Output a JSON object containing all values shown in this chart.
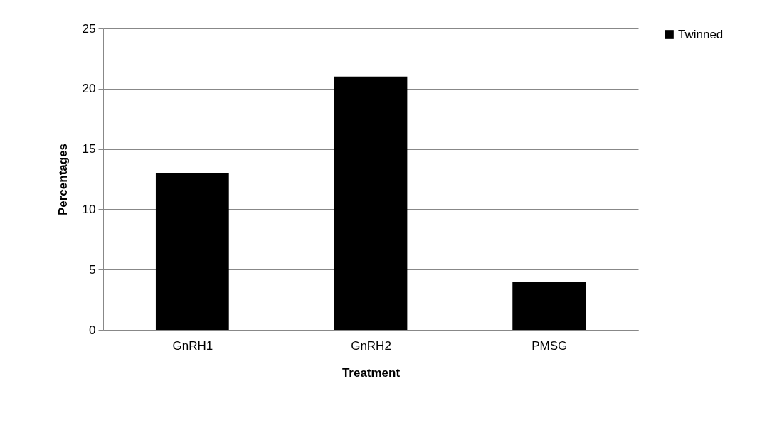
{
  "chart_data": {
    "type": "bar",
    "xlabel": "Treatment",
    "ylabel": "Percentages",
    "categories": [
      "GnRH1",
      "GnRH2",
      "PMSG"
    ],
    "series": [
      {
        "name": "Twinned",
        "color": "#000000",
        "values": [
          13,
          21,
          4
        ]
      }
    ],
    "ylim": [
      0,
      25
    ],
    "yticks": [
      0,
      5,
      10,
      15,
      20,
      25
    ],
    "grid": "y",
    "legend": "right"
  }
}
